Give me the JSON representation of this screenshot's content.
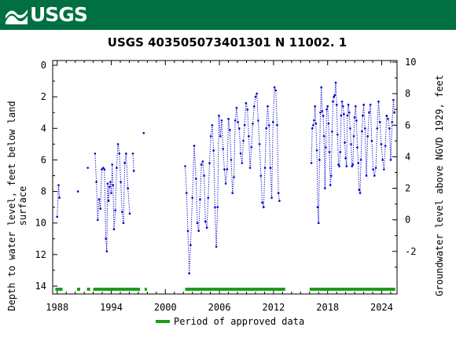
{
  "header": {
    "logo_text": "USGS",
    "background": "#006f41"
  },
  "chart_data": {
    "type": "scatter",
    "title": "USGS 403505073401301 N 11002. 1",
    "ylabel_left": [
      "Depth to water level, feet below land",
      "surface"
    ],
    "ylabel_right": "Groundwater level above NGVD 1929, feet",
    "x_ticks": [
      "1988",
      "1994",
      "2000",
      "2006",
      "2012",
      "2018",
      "2024"
    ],
    "x_tick_values": [
      1988,
      1994,
      2000,
      2006,
      2012,
      2018,
      2024
    ],
    "xlim": [
      1987.5,
      2025.7
    ],
    "y_ticks_left": [
      0,
      2,
      4,
      6,
      8,
      10,
      12,
      14
    ],
    "ylim_left": [
      14.5,
      -0.3
    ],
    "y_ticks_right": [
      10,
      8,
      6,
      4,
      2,
      0,
      -2
    ],
    "right_axis_offset": 9.8,
    "series": [
      {
        "name": "",
        "color": "#0000cc",
        "style": "dotted-with-points",
        "segments": [
          [
            [
              1988.0,
              9.6
            ],
            [
              1988.15,
              7.6
            ],
            [
              1988.25,
              8.4
            ]
          ],
          [
            [
              1990.3,
              8.0
            ]
          ],
          [
            [
              1991.4,
              6.5
            ]
          ],
          [
            [
              1992.2,
              5.6
            ],
            [
              1992.35,
              7.4
            ],
            [
              1992.5,
              9.8
            ],
            [
              1992.65,
              8.5
            ],
            [
              1992.8,
              9.1
            ],
            [
              1992.95,
              6.6
            ],
            [
              1993.1,
              6.5
            ],
            [
              1993.25,
              6.6
            ],
            [
              1993.4,
              11.0
            ],
            [
              1993.5,
              11.8
            ],
            [
              1993.6,
              7.5
            ],
            [
              1993.7,
              8.6
            ],
            [
              1993.8,
              7.7
            ],
            [
              1993.9,
              7.4
            ],
            [
              1994.0,
              8.1
            ],
            [
              1994.1,
              6.3
            ],
            [
              1994.2,
              7.6
            ],
            [
              1994.3,
              10.4
            ],
            [
              1994.45,
              9.2
            ],
            [
              1994.6,
              6.5
            ],
            [
              1994.75,
              5.0
            ],
            [
              1994.9,
              5.6
            ],
            [
              1995.05,
              7.4
            ],
            [
              1995.2,
              9.3
            ],
            [
              1995.35,
              10.0
            ],
            [
              1995.5,
              6.2
            ],
            [
              1995.65,
              5.6
            ],
            [
              1995.85,
              7.8
            ],
            [
              1996.05,
              9.4
            ]
          ],
          [
            [
              1996.4,
              5.6
            ],
            [
              1996.5,
              6.7
            ]
          ],
          [
            [
              1997.6,
              4.3
            ]
          ],
          [
            [
              2002.2,
              6.4
            ],
            [
              2002.35,
              8.1
            ],
            [
              2002.5,
              10.5
            ],
            [
              2002.65,
              13.2
            ],
            [
              2002.8,
              11.4
            ],
            [
              2003.0,
              8.4
            ],
            [
              2003.2,
              5.1
            ],
            [
              2003.4,
              7.2
            ],
            [
              2003.55,
              10.0
            ],
            [
              2003.7,
              10.5
            ],
            [
              2003.85,
              8.5
            ],
            [
              2004.0,
              6.3
            ],
            [
              2004.15,
              6.1
            ],
            [
              2004.3,
              7.0
            ],
            [
              2004.45,
              9.9
            ],
            [
              2004.6,
              10.3
            ],
            [
              2004.75,
              8.4
            ],
            [
              2004.9,
              6.2
            ],
            [
              2005.05,
              4.5
            ],
            [
              2005.2,
              3.8
            ],
            [
              2005.35,
              5.4
            ],
            [
              2005.5,
              9.0
            ],
            [
              2005.65,
              11.5
            ],
            [
              2005.8,
              9.0
            ],
            [
              2005.95,
              3.2
            ],
            [
              2006.1,
              4.5
            ],
            [
              2006.25,
              3.5
            ],
            [
              2006.4,
              5.3
            ],
            [
              2006.55,
              6.6
            ],
            [
              2006.7,
              7.5
            ],
            [
              2006.85,
              6.6
            ],
            [
              2007.0,
              3.4
            ],
            [
              2007.15,
              4.1
            ],
            [
              2007.3,
              6.0
            ],
            [
              2007.45,
              8.1
            ],
            [
              2007.6,
              7.1
            ],
            [
              2007.75,
              3.5
            ],
            [
              2007.9,
              2.7
            ],
            [
              2008.05,
              3.6
            ],
            [
              2008.2,
              4.0
            ],
            [
              2008.35,
              5.6
            ],
            [
              2008.5,
              6.2
            ],
            [
              2008.65,
              4.8
            ],
            [
              2008.8,
              3.8
            ],
            [
              2008.95,
              2.4
            ],
            [
              2009.1,
              2.8
            ],
            [
              2009.25,
              4.5
            ],
            [
              2009.4,
              6.5
            ],
            [
              2009.55,
              5.2
            ],
            [
              2009.7,
              3.7
            ],
            [
              2009.85,
              2.6
            ],
            [
              2010.0,
              2.0
            ],
            [
              2010.15,
              1.8
            ],
            [
              2010.3,
              3.5
            ],
            [
              2010.45,
              5.0
            ],
            [
              2010.6,
              7.0
            ],
            [
              2010.75,
              8.7
            ],
            [
              2010.9,
              9.0
            ],
            [
              2011.05,
              6.5
            ],
            [
              2011.2,
              4.0
            ],
            [
              2011.35,
              2.6
            ],
            [
              2011.5,
              3.8
            ],
            [
              2011.65,
              6.5
            ],
            [
              2011.8,
              8.4
            ],
            [
              2011.95,
              3.6
            ],
            [
              2012.1,
              1.4
            ],
            [
              2012.25,
              1.6
            ],
            [
              2012.4,
              3.8
            ],
            [
              2012.55,
              8.1
            ],
            [
              2012.65,
              8.6
            ]
          ],
          [
            [
              2016.2,
              6.2
            ],
            [
              2016.3,
              4.0
            ],
            [
              2016.4,
              3.8
            ],
            [
              2016.5,
              3.5
            ],
            [
              2016.6,
              2.6
            ],
            [
              2016.7,
              3.7
            ],
            [
              2016.8,
              5.4
            ],
            [
              2016.9,
              9.0
            ],
            [
              2017.0,
              10.0
            ],
            [
              2017.1,
              6.0
            ],
            [
              2017.2,
              3.0
            ],
            [
              2017.3,
              1.4
            ],
            [
              2017.4,
              2.9
            ],
            [
              2017.5,
              3.2
            ],
            [
              2017.6,
              4.5
            ],
            [
              2017.7,
              7.8
            ],
            [
              2017.8,
              5.2
            ],
            [
              2017.9,
              2.8
            ],
            [
              2018.0,
              2.6
            ],
            [
              2018.1,
              3.7
            ],
            [
              2018.2,
              5.5
            ],
            [
              2018.3,
              7.6
            ],
            [
              2018.4,
              7.0
            ],
            [
              2018.5,
              4.2
            ],
            [
              2018.6,
              2.3
            ],
            [
              2018.7,
              2.0
            ],
            [
              2018.8,
              1.9
            ],
            [
              2018.9,
              1.1
            ],
            [
              2019.0,
              2.5
            ],
            [
              2019.1,
              4.4
            ],
            [
              2019.2,
              6.3
            ],
            [
              2019.3,
              6.4
            ],
            [
              2019.4,
              5.5
            ],
            [
              2019.5,
              3.2
            ],
            [
              2019.6,
              2.3
            ],
            [
              2019.7,
              2.6
            ],
            [
              2019.8,
              3.1
            ],
            [
              2019.9,
              4.9
            ],
            [
              2020.0,
              5.9
            ],
            [
              2020.1,
              6.4
            ],
            [
              2020.2,
              3.2
            ],
            [
              2020.3,
              2.5
            ],
            [
              2020.4,
              3.0
            ],
            [
              2020.5,
              4.0
            ],
            [
              2020.6,
              5.0
            ],
            [
              2020.7,
              6.4
            ],
            [
              2020.8,
              6.3
            ],
            [
              2020.9,
              4.5
            ],
            [
              2021.0,
              3.3
            ],
            [
              2021.1,
              2.6
            ],
            [
              2021.2,
              3.5
            ],
            [
              2021.3,
              5.2
            ],
            [
              2021.4,
              6.2
            ],
            [
              2021.5,
              7.9
            ],
            [
              2021.6,
              8.1
            ],
            [
              2021.7,
              6.0
            ],
            [
              2021.8,
              4.2
            ],
            [
              2021.9,
              3.2
            ],
            [
              2022.0,
              2.5
            ],
            [
              2022.15,
              4.0
            ],
            [
              2022.3,
              7.0
            ],
            [
              2022.45,
              4.5
            ],
            [
              2022.6,
              3.0
            ],
            [
              2022.75,
              2.5
            ],
            [
              2022.9,
              4.8
            ],
            [
              2023.05,
              6.6
            ],
            [
              2023.2,
              7.0
            ],
            [
              2023.35,
              6.5
            ],
            [
              2023.5,
              4.0
            ],
            [
              2023.65,
              2.3
            ],
            [
              2023.8,
              3.6
            ],
            [
              2023.95,
              5.0
            ],
            [
              2024.1,
              6.0
            ],
            [
              2024.25,
              6.6
            ],
            [
              2024.4,
              5.1
            ],
            [
              2024.55,
              3.2
            ],
            [
              2024.7,
              3.4
            ],
            [
              2024.85,
              4.0
            ],
            [
              2025.0,
              6.0
            ],
            [
              2025.15,
              3.6
            ],
            [
              2025.3,
              2.2
            ],
            [
              2025.4,
              3.0
            ]
          ]
        ]
      }
    ],
    "approved_periods": [
      [
        1987.8,
        1988.6
      ],
      [
        1990.2,
        1990.55
      ],
      [
        1991.3,
        1991.65
      ],
      [
        1992.0,
        1997.2
      ],
      [
        1997.7,
        1997.95
      ],
      [
        2002.2,
        2013.3
      ],
      [
        2016.0,
        2025.5
      ]
    ],
    "legend": {
      "label": "Period of approved data",
      "color": "#1a9e1a",
      "placement": "bottom"
    },
    "grid": false
  }
}
